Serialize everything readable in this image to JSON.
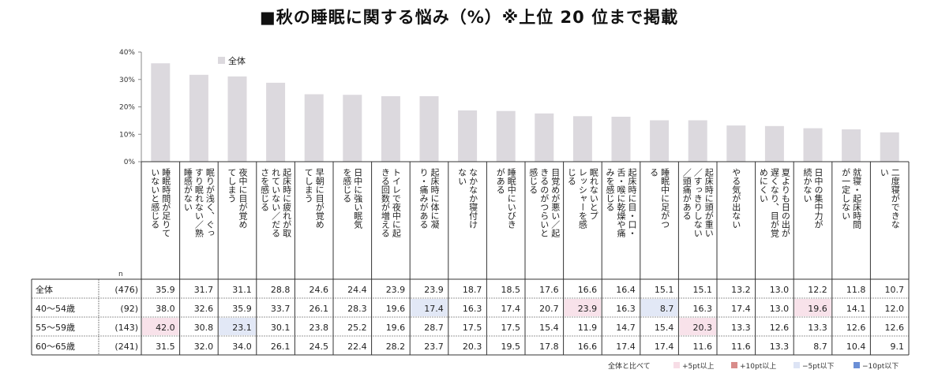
{
  "title": "■秋の睡眠に関する悩み（%）※上位 20 位まで掲載",
  "chart_data": {
    "type": "bar",
    "title": "■秋の睡眠に関する悩み（%）※上位 20 位まで掲載",
    "ylim": [
      0,
      40
    ],
    "yticks": [
      "0%",
      "10%",
      "20%",
      "30%",
      "40%"
    ],
    "legend": {
      "label": "全体",
      "placement": "top-left"
    },
    "bar_color": "#dcd9de",
    "categories": [
      [
        "睡眠時間が足りて",
        "いないと感じる"
      ],
      [
        "眠りが浅く、ぐっ",
        "すり眠れない／熟",
        "睡感がない"
      ],
      [
        "夜中に目が覚め",
        "てしまう"
      ],
      [
        "起床時に疲れが取",
        "れていない／だる",
        "さを感じる"
      ],
      [
        "早朝に目が覚め",
        "てしまう"
      ],
      [
        "日中に強い眠気",
        "を感じる"
      ],
      [
        "トイレで夜中に起",
        "きる回数が増える"
      ],
      [
        "起床時に体に凝",
        "り・痛みがある"
      ],
      [
        "なかなか寝付け",
        "ない"
      ],
      [
        "睡眠中にいびき",
        "がある"
      ],
      [
        "目覚めが悪い／起",
        "きるのがつらいと",
        "感じる"
      ],
      [
        "眠れないとプ",
        "レッシャーを感",
        "じる"
      ],
      [
        "起床時に目・口・",
        "舌・喉に乾燥や痛",
        "みを感じる"
      ],
      [
        "睡眠中に足がつ",
        "る"
      ],
      [
        "起床時に頭が重い",
        "／すっきりしない",
        "／頭痛がある"
      ],
      [
        "やる気が出ない"
      ],
      [
        "夏よりも日の出が",
        "遅くなり、目が覚",
        "めにくい"
      ],
      [
        "日中の集中力が",
        "続かない"
      ],
      [
        "就寝・起床時間",
        "が一定しない"
      ],
      [
        "二度寝ができな",
        "い"
      ]
    ],
    "n_label": "n",
    "series": [
      {
        "name": "全体",
        "n": "(476)",
        "values": [
          35.9,
          31.7,
          31.1,
          28.8,
          24.6,
          24.4,
          23.9,
          23.9,
          18.7,
          18.5,
          17.6,
          16.6,
          16.4,
          15.1,
          15.1,
          13.2,
          13.0,
          12.2,
          11.8,
          10.7
        ]
      },
      {
        "name": "40～54歳",
        "n": "(92)",
        "values": [
          38.0,
          32.6,
          35.9,
          33.7,
          26.1,
          28.3,
          19.6,
          17.4,
          16.3,
          17.4,
          20.7,
          23.9,
          16.3,
          8.7,
          16.3,
          17.4,
          13.0,
          19.6,
          14.1,
          12.0
        ]
      },
      {
        "name": "55～59歳",
        "n": "(143)",
        "values": [
          42.0,
          30.8,
          23.1,
          30.1,
          23.8,
          25.2,
          19.6,
          28.7,
          17.5,
          17.5,
          15.4,
          11.9,
          14.7,
          15.4,
          20.3,
          13.3,
          12.6,
          13.3,
          12.6,
          12.6
        ]
      },
      {
        "name": "60～65歳",
        "n": "(241)",
        "values": [
          31.5,
          32.0,
          34.0,
          26.1,
          24.5,
          22.4,
          28.2,
          23.7,
          20.3,
          19.5,
          17.8,
          16.6,
          17.4,
          17.4,
          11.6,
          11.6,
          13.3,
          8.7,
          10.4,
          9.1
        ]
      }
    ],
    "comparison_legend": {
      "label": "全体と比べて",
      "items": [
        {
          "label": "+5pt以上",
          "color": "#f7dde6"
        },
        {
          "label": "+10pt以上",
          "color": "#d88c8a"
        },
        {
          "label": "−5pt以下",
          "color": "#dde4f5"
        },
        {
          "label": "−10pt以下",
          "color": "#6b8fd6"
        }
      ]
    }
  }
}
